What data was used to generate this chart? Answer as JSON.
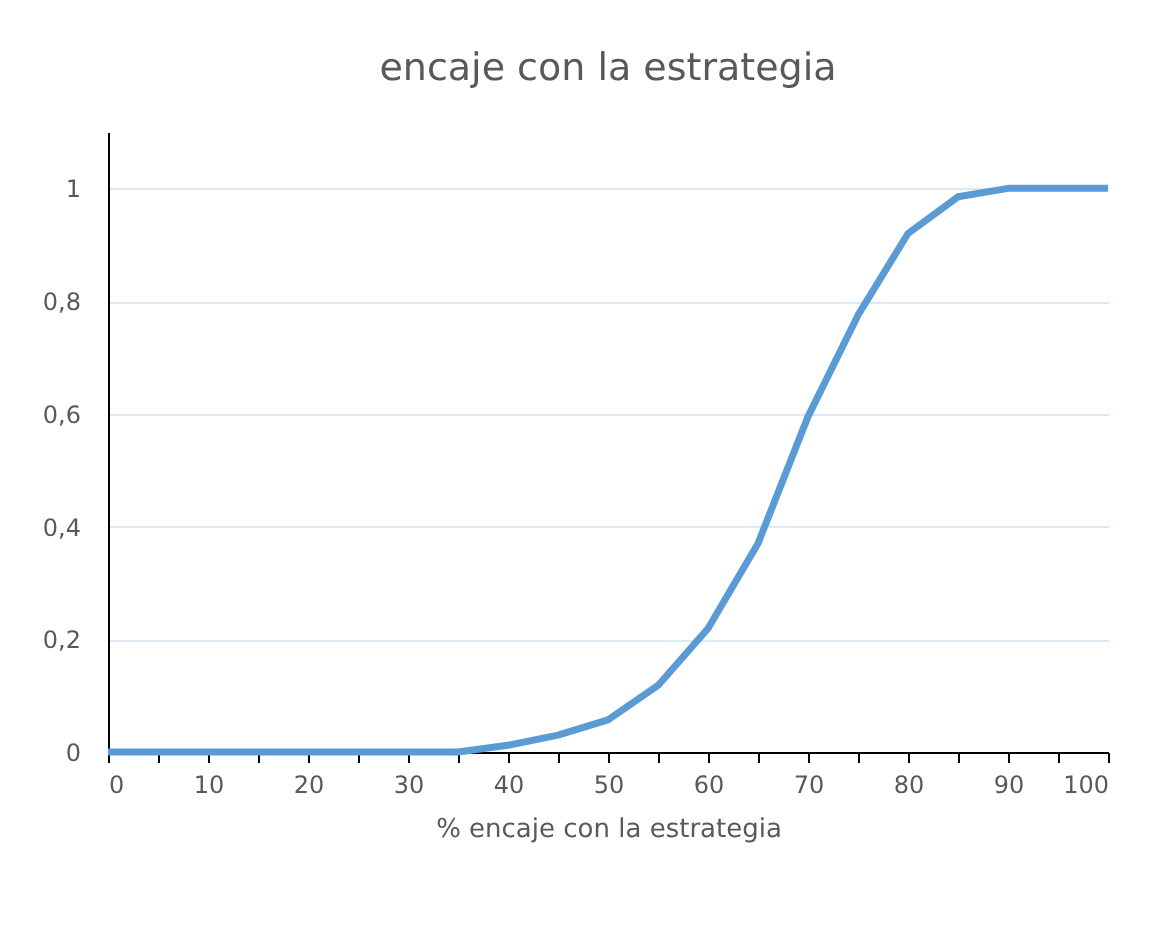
{
  "chart_data": {
    "type": "line",
    "title": "encaje con la estrategia",
    "xlabel": "% encaje con la estrategia",
    "x": [
      0,
      5,
      10,
      15,
      20,
      25,
      30,
      35,
      40,
      45,
      50,
      55,
      60,
      65,
      70,
      75,
      80,
      85,
      90,
      95,
      100
    ],
    "series": [
      {
        "color": "#5b9bd5",
        "values": [
          0,
          0,
          0,
          0,
          0,
          0,
          0,
          0,
          0.012,
          0.03,
          0.057,
          0.118,
          0.219,
          0.37,
          0.595,
          0.775,
          0.92,
          0.985,
          1,
          1,
          1
        ]
      }
    ],
    "xlim": [
      0,
      100
    ],
    "xticks": [
      0,
      {
        "value": 5,
        "label": null
      },
      10,
      {
        "value": 15,
        "label": null
      },
      20,
      {
        "value": 25,
        "label": null
      },
      30,
      {
        "value": 35,
        "label": null
      },
      40,
      {
        "value": 45,
        "label": null
      },
      50,
      {
        "value": 55,
        "label": null
      },
      60,
      {
        "value": 65,
        "label": null
      },
      70,
      {
        "value": 75,
        "label": null
      },
      80,
      {
        "value": 85,
        "label": null
      },
      90,
      {
        "value": 95,
        "label": null
      },
      100
    ],
    "ylim": [
      0,
      1.1
    ],
    "yticks": [
      0,
      {
        "value": 0.2,
        "label": "0,2"
      },
      {
        "value": 0.4,
        "label": "0,4"
      },
      {
        "value": 0.6,
        "label": "0,6"
      },
      {
        "value": 0.8,
        "label": "0,8"
      },
      1
    ],
    "grid": "y",
    "marker": "none",
    "line_style": "solid"
  }
}
